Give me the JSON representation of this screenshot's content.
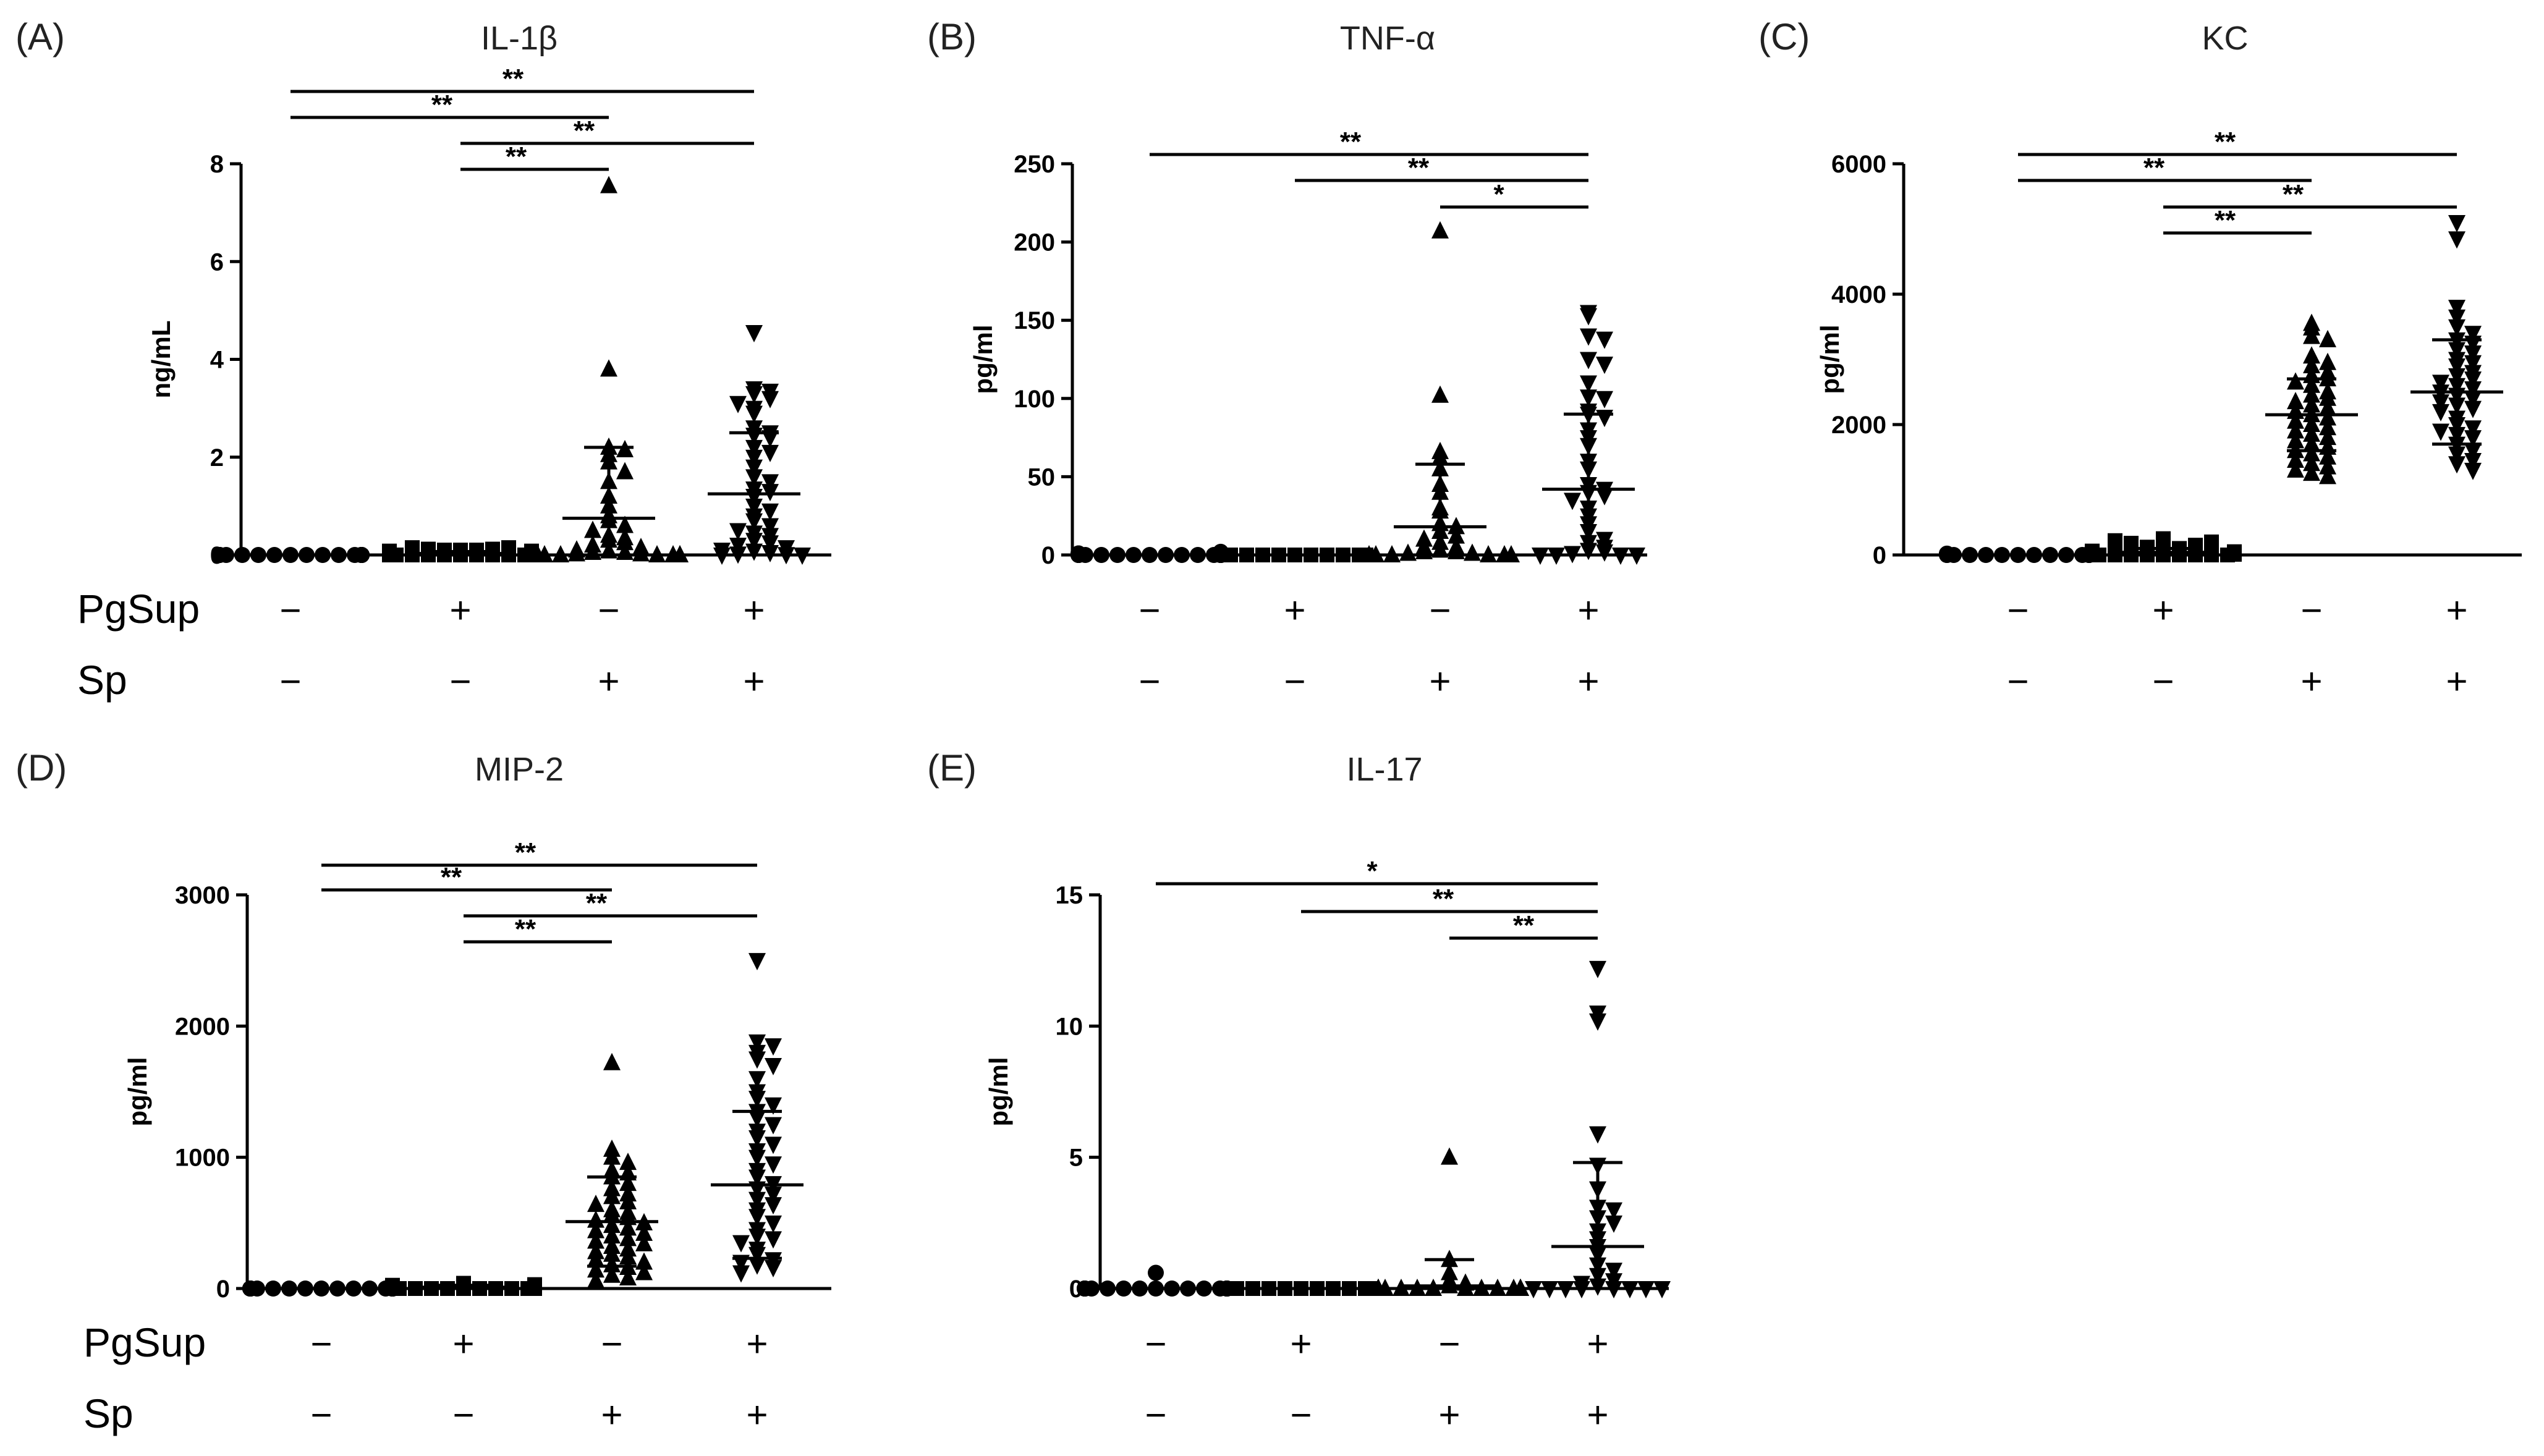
{
  "row_labels": {
    "pgsup": "PgSup",
    "sp": "Sp"
  },
  "conditions": {
    "pgsup": [
      "−",
      "+",
      "−",
      "+"
    ],
    "sp": [
      "−",
      "−",
      "+",
      "+"
    ]
  },
  "chart_data": [
    {
      "letter": "(A)",
      "title": "IL-1β",
      "ylabel": "ng/mL",
      "type": "scatter",
      "ylim": [
        0,
        8
      ],
      "yticks": [
        0,
        2,
        4,
        6,
        8
      ],
      "groups": [
        {
          "marker": "circle",
          "mean": 0.0,
          "sd": 0.0,
          "values": [
            0,
            0,
            0,
            0,
            0,
            0,
            0,
            0,
            0,
            0,
            0,
            0,
            0,
            0,
            0,
            0,
            0,
            0,
            0,
            0,
            0,
            0,
            0,
            0,
            0,
            0,
            0,
            0,
            0,
            0
          ]
        },
        {
          "marker": "square",
          "mean": 0.03,
          "sd": 0.04,
          "values": [
            0,
            0,
            0,
            0,
            0,
            0,
            0,
            0,
            0,
            0,
            0,
            0,
            0,
            0,
            0.05,
            0.05,
            0.05,
            0.05,
            0.08,
            0.08,
            0.1,
            0.1,
            0.1,
            0.12,
            0.12,
            0.15,
            0.15
          ]
        },
        {
          "marker": "triangle-up",
          "mean": 0.75,
          "sd": 1.45,
          "values": [
            7.55,
            3.8,
            2.2,
            2.15,
            2.05,
            1.9,
            1.7,
            1.5,
            1.2,
            1.0,
            0.8,
            0.7,
            0.6,
            0.5,
            0.4,
            0.35,
            0.3,
            0.25,
            0.2,
            0.15,
            0.1,
            0.08,
            0.05,
            0.05,
            0.02,
            0.02,
            0,
            0,
            0,
            0,
            0,
            0,
            0,
            0
          ]
        },
        {
          "marker": "triangle-down",
          "mean": 1.25,
          "sd": 1.25,
          "values": [
            4.55,
            3.4,
            3.35,
            3.3,
            3.2,
            3.1,
            3.0,
            2.9,
            2.6,
            2.5,
            2.45,
            2.4,
            2.2,
            2.1,
            2.0,
            1.8,
            1.6,
            1.5,
            1.35,
            1.3,
            1.2,
            1.0,
            0.9,
            0.8,
            0.7,
            0.6,
            0.5,
            0.45,
            0.4,
            0.3,
            0.25,
            0.2,
            0.15,
            0.1,
            0.08,
            0.05,
            0.02,
            0.01,
            0,
            0
          ]
        }
      ],
      "comparisons": [
        {
          "from": 0,
          "to": 3,
          "label": "**"
        },
        {
          "from": 0,
          "to": 2,
          "label": "**"
        },
        {
          "from": 1,
          "to": 3,
          "label": "**"
        },
        {
          "from": 1,
          "to": 2,
          "label": "**"
        }
      ]
    },
    {
      "letter": "(B)",
      "title": "TNF-α",
      "ylabel": "pg/ml",
      "type": "scatter",
      "ylim": [
        0,
        250
      ],
      "yticks": [
        0,
        50,
        100,
        150,
        200,
        250
      ],
      "groups": [
        {
          "marker": "circle",
          "mean": 0.0,
          "sd": 0.0,
          "values": [
            0,
            0,
            0,
            0,
            0,
            0,
            0,
            0,
            0,
            0,
            0,
            0,
            0,
            0,
            0,
            0,
            0,
            0,
            0,
            0,
            1,
            1,
            1,
            2
          ]
        },
        {
          "marker": "square",
          "mean": 0.0,
          "sd": 0.0,
          "values": [
            0,
            0,
            0,
            0,
            0,
            0,
            0,
            0,
            0,
            0,
            0,
            0,
            0,
            0,
            0,
            0,
            0,
            0,
            0,
            0,
            0,
            0,
            0
          ]
        },
        {
          "marker": "triangle-up",
          "mean": 18,
          "sd": 40,
          "values": [
            207,
            102,
            66,
            62,
            55,
            45,
            40,
            30,
            28,
            20,
            18,
            15,
            12,
            10,
            8,
            5,
            5,
            3,
            2,
            2,
            1,
            1,
            0,
            0,
            0,
            0,
            0,
            0
          ]
        },
        {
          "marker": "triangle-down",
          "mean": 42,
          "sd": 48,
          "values": [
            155,
            153,
            140,
            138,
            125,
            122,
            110,
            101,
            100,
            92,
            90,
            88,
            80,
            75,
            70,
            60,
            55,
            45,
            42,
            40,
            38,
            35,
            30,
            25,
            20,
            15,
            10,
            8,
            5,
            3,
            2,
            1,
            0,
            0,
            0,
            0
          ]
        }
      ],
      "comparisons": [
        {
          "from": 0,
          "to": 3,
          "label": "**"
        },
        {
          "from": 1,
          "to": 3,
          "label": "**"
        },
        {
          "from": 2,
          "to": 3,
          "label": "*"
        }
      ]
    },
    {
      "letter": "(C)",
      "title": "KC",
      "ylabel": "pg/ml",
      "type": "scatter",
      "ylim": [
        0,
        6000
      ],
      "yticks": [
        0,
        2000,
        4000,
        6000
      ],
      "groups": [
        {
          "marker": "circle",
          "mean": 0,
          "sd": 0,
          "values": [
            0,
            0,
            0,
            0,
            0,
            0,
            0,
            0,
            0,
            0,
            0,
            0,
            0,
            0,
            10,
            10,
            20,
            20,
            20
          ]
        },
        {
          "marker": "square",
          "mean": 40,
          "sd": 60,
          "values": [
            0,
            0,
            0,
            0,
            0,
            0,
            0,
            0,
            0,
            10,
            10,
            20,
            20,
            30,
            40,
            50,
            60,
            80,
            100,
            120,
            150,
            180,
            200,
            220,
            250
          ]
        },
        {
          "marker": "triangle-up",
          "mean": 2150,
          "sd": 550,
          "values": [
            3550,
            3480,
            3350,
            3300,
            3050,
            2950,
            2900,
            2800,
            2750,
            2700,
            2650,
            2600,
            2500,
            2450,
            2400,
            2350,
            2300,
            2250,
            2200,
            2150,
            2100,
            2050,
            2000,
            1950,
            1900,
            1850,
            1800,
            1750,
            1700,
            1650,
            1600,
            1550,
            1500,
            1450,
            1400,
            1350,
            1300,
            1250,
            1200
          ]
        },
        {
          "marker": "triangle-down",
          "mean": 2500,
          "sd": 800,
          "values": [
            5100,
            4850,
            3800,
            3650,
            3500,
            3400,
            3300,
            3250,
            3150,
            3100,
            3000,
            2950,
            2900,
            2800,
            2750,
            2700,
            2650,
            2600,
            2550,
            2500,
            2450,
            2400,
            2350,
            2300,
            2250,
            2200,
            2100,
            2000,
            1950,
            1900,
            1850,
            1800,
            1700,
            1600,
            1550,
            1450,
            1400,
            1300
          ]
        }
      ],
      "comparisons": [
        {
          "from": 0,
          "to": 3,
          "label": "**"
        },
        {
          "from": 0,
          "to": 2,
          "label": "**"
        },
        {
          "from": 1,
          "to": 3,
          "label": "**"
        },
        {
          "from": 1,
          "to": 2,
          "label": "**"
        }
      ]
    },
    {
      "letter": "(D)",
      "title": "MIP-2",
      "ylabel": "pg/ml",
      "type": "scatter",
      "ylim": [
        0,
        3000
      ],
      "yticks": [
        0,
        1000,
        2000,
        3000
      ],
      "groups": [
        {
          "marker": "circle",
          "mean": 0,
          "sd": 0,
          "values": [
            0,
            0,
            0,
            0,
            0,
            0,
            0,
            0,
            0,
            0,
            0,
            0,
            0,
            0,
            0,
            0,
            0,
            0,
            0,
            0,
            0,
            0,
            0,
            0,
            0,
            0,
            0,
            0,
            0,
            0,
            0,
            0,
            0
          ]
        },
        {
          "marker": "square",
          "mean": 10,
          "sd": 15,
          "values": [
            0,
            0,
            0,
            0,
            0,
            0,
            0,
            0,
            0,
            0,
            0,
            0,
            0,
            5,
            5,
            10,
            10,
            15,
            20,
            20,
            25,
            30,
            40
          ]
        },
        {
          "marker": "triangle-up",
          "mean": 510,
          "sd": 340,
          "values": [
            1720,
            1060,
            1000,
            960,
            900,
            880,
            850,
            800,
            760,
            720,
            700,
            660,
            640,
            600,
            580,
            560,
            540,
            520,
            500,
            480,
            460,
            440,
            420,
            400,
            380,
            360,
            340,
            320,
            300,
            280,
            260,
            240,
            220,
            200,
            180,
            160,
            140,
            120,
            100,
            80,
            60
          ]
        },
        {
          "marker": "triangle-down",
          "mean": 790,
          "sd": 560,
          "values": [
            2500,
            1880,
            1850,
            1800,
            1750,
            1700,
            1600,
            1500,
            1450,
            1400,
            1350,
            1300,
            1250,
            1200,
            1150,
            1100,
            1050,
            1000,
            950,
            900,
            850,
            800,
            760,
            720,
            680,
            640,
            600,
            550,
            500,
            450,
            400,
            380,
            350,
            300,
            260,
            220,
            200,
            180,
            160,
            120
          ]
        }
      ],
      "comparisons": [
        {
          "from": 0,
          "to": 3,
          "label": "**"
        },
        {
          "from": 0,
          "to": 2,
          "label": "**"
        },
        {
          "from": 1,
          "to": 3,
          "label": "**"
        },
        {
          "from": 1,
          "to": 2,
          "label": "**"
        }
      ]
    },
    {
      "letter": "(E)",
      "title": "IL-17",
      "ylabel": "pg/ml",
      "type": "scatter",
      "ylim": [
        0,
        15
      ],
      "yticks": [
        0,
        5,
        10,
        15
      ],
      "groups": [
        {
          "marker": "circle",
          "mean": 0,
          "sd": 0,
          "values": [
            0.6,
            0,
            0,
            0,
            0,
            0,
            0,
            0,
            0,
            0,
            0,
            0,
            0,
            0,
            0,
            0,
            0,
            0,
            0,
            0,
            0,
            0,
            0,
            0,
            0,
            0
          ]
        },
        {
          "marker": "square",
          "mean": 0,
          "sd": 0,
          "values": [
            0,
            0,
            0,
            0,
            0,
            0,
            0,
            0,
            0,
            0,
            0,
            0,
            0,
            0,
            0,
            0,
            0,
            0,
            0,
            0,
            0,
            0
          ]
        },
        {
          "marker": "triangle-up",
          "mean": 0.1,
          "sd": 1.0,
          "values": [
            5.0,
            1.1,
            0.6,
            0.3,
            0.2,
            0.1,
            0,
            0,
            0,
            0,
            0,
            0,
            0,
            0,
            0,
            0,
            0,
            0,
            0,
            0,
            0,
            0,
            0,
            0
          ]
        },
        {
          "marker": "triangle-down",
          "mean": 1.6,
          "sd": 3.2,
          "values": [
            12.2,
            10.5,
            10.2,
            5.9,
            4.7,
            3.8,
            3.1,
            3.0,
            2.7,
            2.5,
            2.2,
            1.9,
            1.6,
            1.3,
            0.9,
            0.7,
            0.5,
            0.3,
            0.2,
            0.1,
            0,
            0,
            0,
            0,
            0,
            0,
            0,
            0
          ]
        }
      ],
      "comparisons": [
        {
          "from": 0,
          "to": 3,
          "label": "*"
        },
        {
          "from": 1,
          "to": 3,
          "label": "**"
        },
        {
          "from": 2,
          "to": 3,
          "label": "**"
        }
      ]
    }
  ]
}
